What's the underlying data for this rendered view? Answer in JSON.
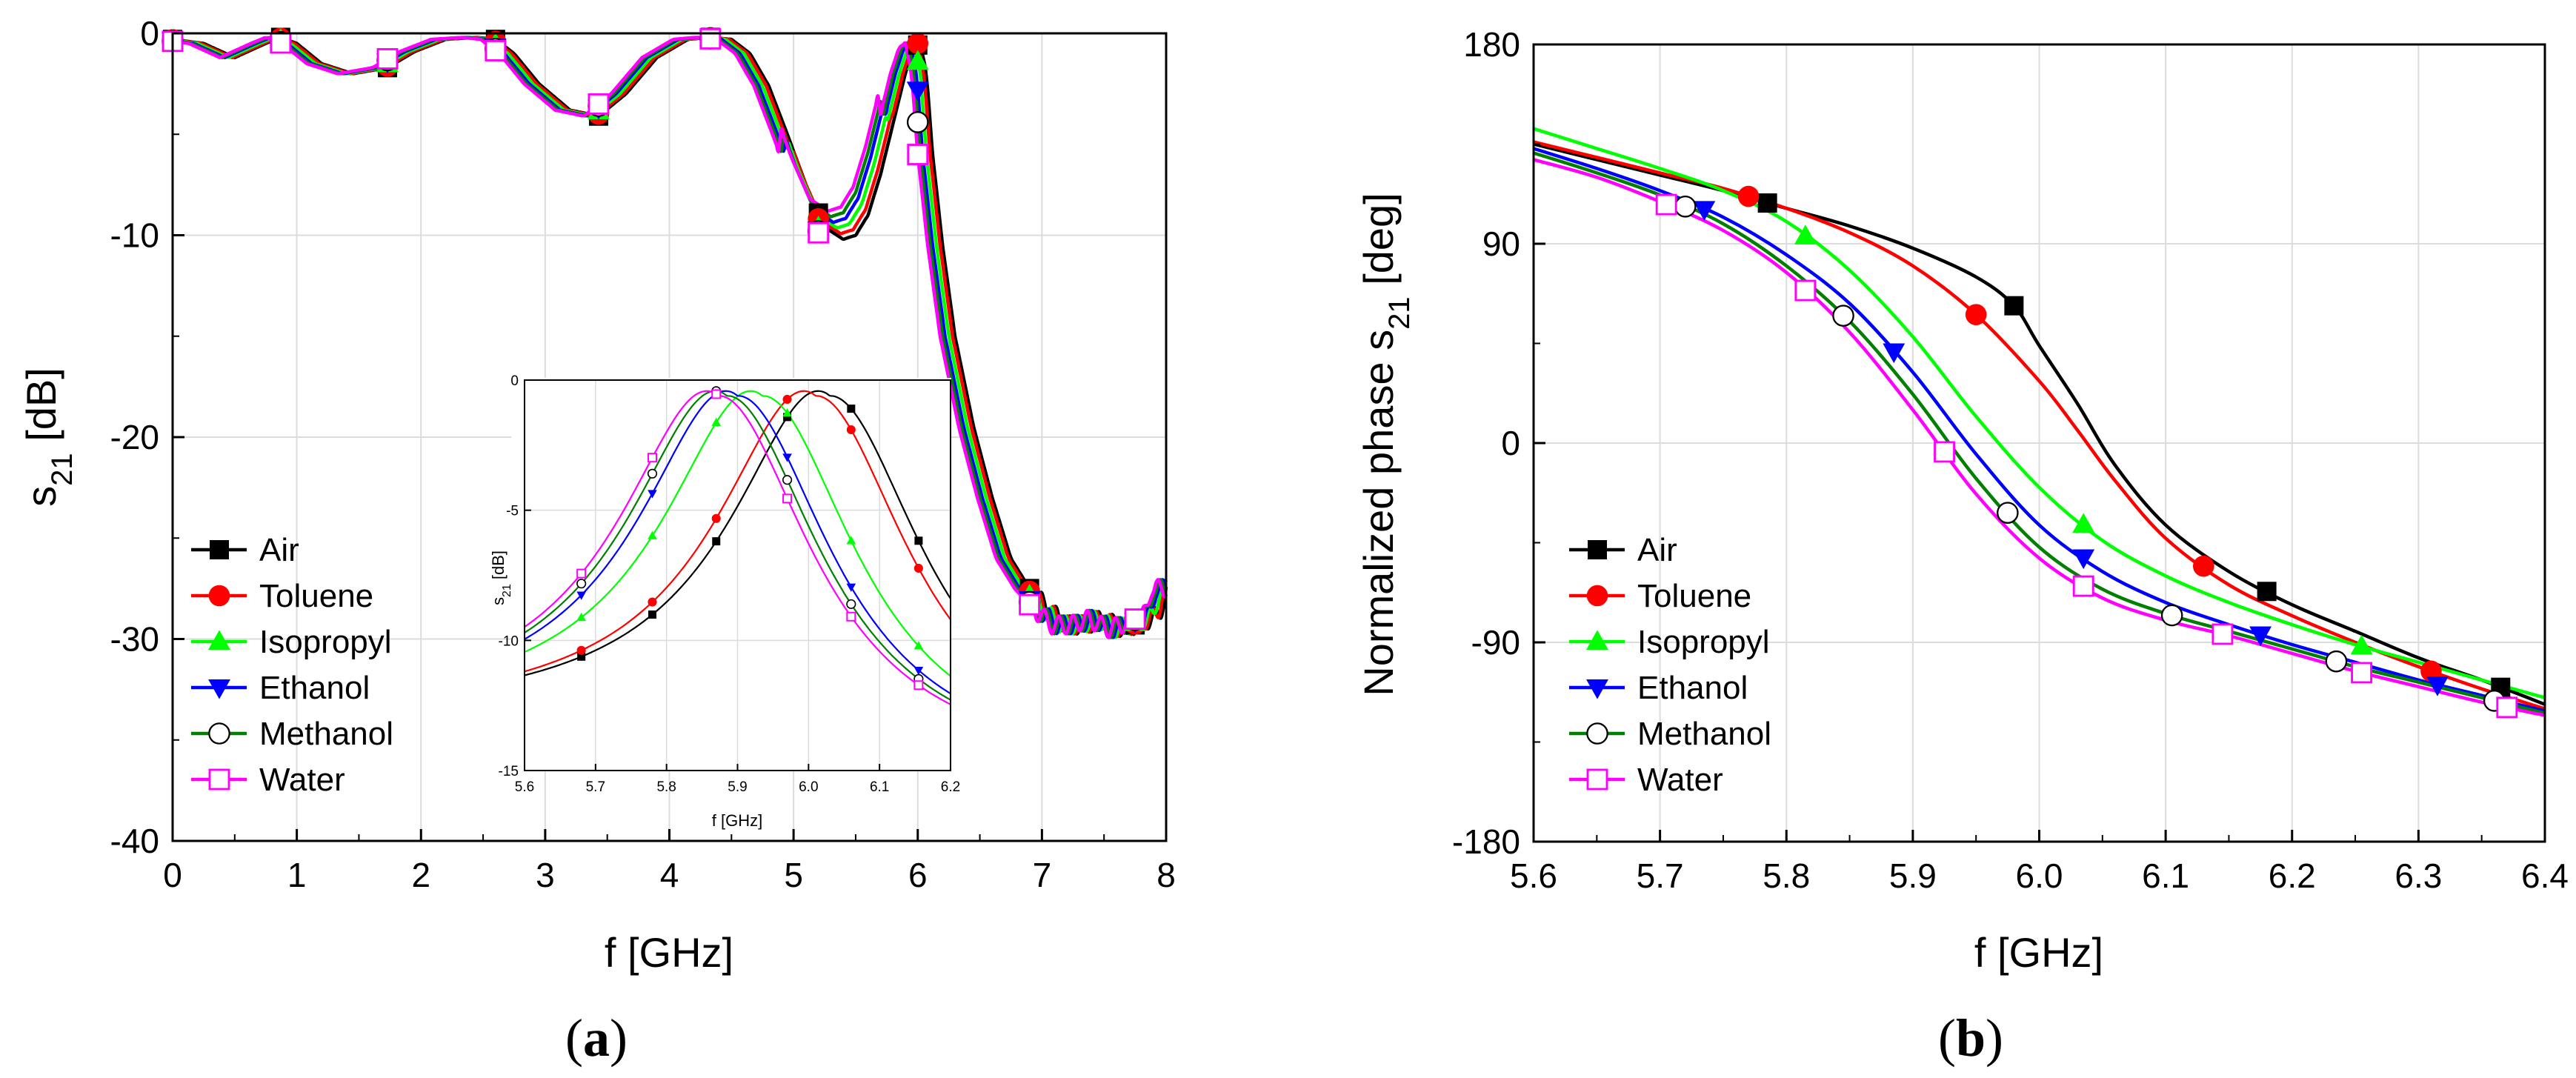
{
  "chart_data": [
    {
      "type": "line",
      "panel_label": {
        "open": "(",
        "letter": "a",
        "close": ")"
      },
      "xlabel": "f [GHz]",
      "ylabel": {
        "main": "s",
        "sub": "21",
        "unit": " [dB]"
      },
      "xlim": [
        0,
        8
      ],
      "ylim": [
        -40,
        0
      ],
      "xticks": [
        0,
        1,
        2,
        3,
        4,
        5,
        6,
        7,
        8
      ],
      "yticks": [
        -40,
        -30,
        -20,
        -10,
        0
      ],
      "legend_position": "bottom-left",
      "series": [
        {
          "name": "Air",
          "color": "#000000",
          "marker": "square-filled",
          "shift": 0.0,
          "marker_x": [
            0,
            0.87,
            1.73,
            2.6,
            3.43,
            4.33,
            5.2,
            6.0,
            6.9,
            7.75
          ]
        },
        {
          "name": "Toluene",
          "color": "#ff0000",
          "marker": "circle-filled",
          "shift": -0.02,
          "marker_x": [
            0,
            0.87,
            1.73,
            2.6,
            3.43,
            4.33,
            5.2,
            6.0,
            6.9,
            7.75
          ]
        },
        {
          "name": "Isopropyl",
          "color": "#00ff00",
          "marker": "triangle-up-filled",
          "shift": -0.05,
          "marker_x": [
            0,
            0.87,
            1.73,
            2.6,
            3.43,
            4.33,
            5.2,
            6.0,
            6.9,
            7.75
          ]
        },
        {
          "name": "Ethanol",
          "color": "#0000ff",
          "marker": "triangle-down-filled",
          "shift": -0.08,
          "marker_x": [
            0,
            0.87,
            1.73,
            2.6,
            3.43,
            4.33,
            5.2,
            6.0,
            6.9,
            7.75
          ]
        },
        {
          "name": "Methanol",
          "color": "#007f00",
          "marker": "circle-open",
          "shift": -0.1,
          "marker_x": [
            0,
            0.87,
            1.73,
            2.6,
            3.43,
            4.33,
            5.2,
            6.0,
            6.9,
            7.75
          ]
        },
        {
          "name": "Water",
          "color": "#ff00ff",
          "marker": "square-open",
          "shift": -0.12,
          "marker_x": [
            0,
            0.87,
            1.73,
            2.6,
            3.43,
            4.33,
            5.2,
            6.0,
            6.9,
            7.75
          ]
        }
      ],
      "base_curve": {
        "x": [
          0,
          0.25,
          0.5,
          0.75,
          0.87,
          1.0,
          1.2,
          1.45,
          1.73,
          1.95,
          2.2,
          2.45,
          2.6,
          2.75,
          2.95,
          3.2,
          3.43,
          3.65,
          3.9,
          4.15,
          4.33,
          4.5,
          4.65,
          4.8,
          4.95,
          5.1,
          5.25,
          5.4,
          5.5,
          5.6,
          5.7,
          5.8,
          5.9,
          5.97,
          6.02,
          6.07,
          6.12,
          6.2,
          6.3,
          6.45,
          6.6,
          6.75,
          6.9,
          7.05,
          7.2,
          7.35,
          7.5,
          7.65,
          7.8,
          7.95,
          8.0
        ],
        "y": [
          -0.3,
          -0.5,
          -1.2,
          -0.5,
          -0.2,
          -0.5,
          -1.5,
          -2.0,
          -1.7,
          -0.9,
          -0.3,
          -0.2,
          -0.3,
          -1.0,
          -2.5,
          -3.8,
          -4.1,
          -3.0,
          -1.2,
          -0.3,
          -0.2,
          -0.3,
          -1.0,
          -2.6,
          -5.0,
          -7.5,
          -9.6,
          -10.2,
          -10.0,
          -9.0,
          -7.0,
          -4.5,
          -2.0,
          -0.7,
          -0.5,
          -2.0,
          -6.0,
          -10.5,
          -15.0,
          -19.5,
          -23.0,
          -26.0,
          -27.5,
          -28.5,
          -29.3,
          -29.3,
          -29.0,
          -29.5,
          -29.2,
          -28.8,
          -27.5
        ]
      },
      "inset": {
        "xlabel": "f [GHz]",
        "ylabel": {
          "main": "s",
          "sub": "21",
          "unit": " [dB]"
        },
        "xlim": [
          5.6,
          6.2
        ],
        "ylim": [
          -15,
          0
        ],
        "xticks": [
          5.6,
          5.7,
          5.8,
          5.9,
          6.0,
          6.1,
          6.2
        ],
        "xtick_labels": [
          "5.6",
          "5.7",
          "5.8",
          "5.9",
          "6.0",
          "6.1",
          "6.2"
        ],
        "yticks": [
          -15,
          -10,
          -5,
          0
        ],
        "peaks": [
          {
            "name": "Air",
            "f0": 6.03
          },
          {
            "name": "Toluene",
            "f0": 6.01
          },
          {
            "name": "Isopropyl",
            "f0": 5.935
          },
          {
            "name": "Ethanol",
            "f0": 5.9
          },
          {
            "name": "Methanol",
            "f0": 5.885
          },
          {
            "name": "Water",
            "f0": 5.873
          }
        ],
        "marker_x": [
          5.68,
          5.78,
          5.87,
          5.97,
          6.06,
          6.155
        ]
      }
    },
    {
      "type": "line",
      "panel_label": {
        "open": "(",
        "letter": "b",
        "close": ")"
      },
      "xlabel": "f [GHz]",
      "ylabel": {
        "main": "Normalized phase s",
        "sub": "21",
        "unit": " [deg]"
      },
      "xlim": [
        5.6,
        6.4
      ],
      "ylim": [
        -180,
        180
      ],
      "xticks": [
        5.6,
        5.7,
        5.8,
        5.9,
        6.0,
        6.1,
        6.2,
        6.3,
        6.4
      ],
      "xtick_labels": [
        "5.6",
        "5.7",
        "5.8",
        "5.9",
        "6.0",
        "6.1",
        "6.2",
        "6.3",
        "6.4"
      ],
      "yticks": [
        -180,
        -90,
        0,
        90,
        180
      ],
      "legend_position": "bottom-left",
      "series": [
        {
          "name": "Air",
          "color": "#000000",
          "marker": "square-filled",
          "x": [
            5.6,
            5.65,
            5.7,
            5.75,
            5.8,
            5.85,
            5.9,
            5.95,
            5.98,
            6.0,
            6.03,
            6.06,
            6.1,
            6.15,
            6.2,
            6.25,
            6.3,
            6.35,
            6.4
          ],
          "y": [
            135,
            128,
            121,
            114,
            106,
            98,
            88,
            75,
            62,
            44,
            18,
            -10,
            -37,
            -58,
            -73,
            -85,
            -97,
            -107,
            -118
          ],
          "marker_x": [
            5.785,
            5.98,
            6.18,
            6.365
          ]
        },
        {
          "name": "Toluene",
          "color": "#ff0000",
          "marker": "circle-filled",
          "x": [
            5.6,
            5.65,
            5.7,
            5.75,
            5.8,
            5.85,
            5.9,
            5.95,
            6.0,
            6.03,
            6.06,
            6.1,
            6.15,
            6.2,
            6.25,
            6.3,
            6.35,
            6.4
          ],
          "y": [
            136,
            129,
            122,
            115,
            106,
            95,
            80,
            58,
            28,
            6,
            -17,
            -43,
            -64,
            -78,
            -90,
            -101,
            -111,
            -120
          ],
          "marker_x": [
            5.77,
            5.95,
            6.13,
            6.31
          ]
        },
        {
          "name": "Isopropyl",
          "color": "#00ff00",
          "marker": "triangle-up-filled",
          "x": [
            5.6,
            5.65,
            5.7,
            5.75,
            5.8,
            5.85,
            5.9,
            5.95,
            6.0,
            6.05,
            6.1,
            6.15,
            6.2,
            6.25,
            6.3,
            6.35,
            6.4
          ],
          "y": [
            142,
            133,
            124,
            114,
            100,
            78,
            48,
            12,
            -20,
            -44,
            -60,
            -72,
            -82,
            -91,
            -99,
            -107,
            -115
          ],
          "marker_x": [
            5.815,
            6.035,
            6.255
          ]
        },
        {
          "name": "Ethanol",
          "color": "#0000ff",
          "marker": "triangle-down-filled",
          "x": [
            5.6,
            5.65,
            5.7,
            5.75,
            5.8,
            5.85,
            5.9,
            5.95,
            6.0,
            6.05,
            6.1,
            6.15,
            6.2,
            6.25,
            6.3,
            6.35,
            6.4
          ],
          "y": [
            133,
            124,
            114,
            102,
            85,
            63,
            32,
            -5,
            -37,
            -58,
            -72,
            -82,
            -91,
            -99,
            -107,
            -114,
            -121
          ],
          "marker_x": [
            5.735,
            5.885,
            6.035,
            6.175,
            6.315
          ]
        },
        {
          "name": "Methanol",
          "color": "#007f00",
          "marker": "circle-open",
          "x": [
            5.6,
            5.65,
            5.7,
            5.75,
            5.8,
            5.85,
            5.9,
            5.95,
            6.0,
            6.05,
            6.1,
            6.15,
            6.2,
            6.25,
            6.3,
            6.35,
            6.4
          ],
          "y": [
            131,
            122,
            112,
            99,
            80,
            55,
            22,
            -16,
            -47,
            -66,
            -77,
            -85,
            -93,
            -101,
            -108,
            -115,
            -122
          ],
          "marker_x": [
            5.72,
            5.845,
            5.975,
            6.105,
            6.235,
            6.36
          ]
        },
        {
          "name": "Water",
          "color": "#ff00ff",
          "marker": "square-open",
          "x": [
            5.6,
            5.65,
            5.7,
            5.75,
            5.8,
            5.85,
            5.9,
            5.95,
            6.0,
            6.05,
            6.1,
            6.15,
            6.2,
            6.25,
            6.3,
            6.35,
            6.4
          ],
          "y": [
            128,
            120,
            109,
            96,
            77,
            50,
            15,
            -23,
            -52,
            -70,
            -80,
            -87,
            -95,
            -103,
            -110,
            -117,
            -123
          ],
          "marker_x": [
            5.705,
            5.815,
            5.925,
            6.035,
            6.145,
            6.255,
            6.37
          ]
        }
      ]
    }
  ]
}
